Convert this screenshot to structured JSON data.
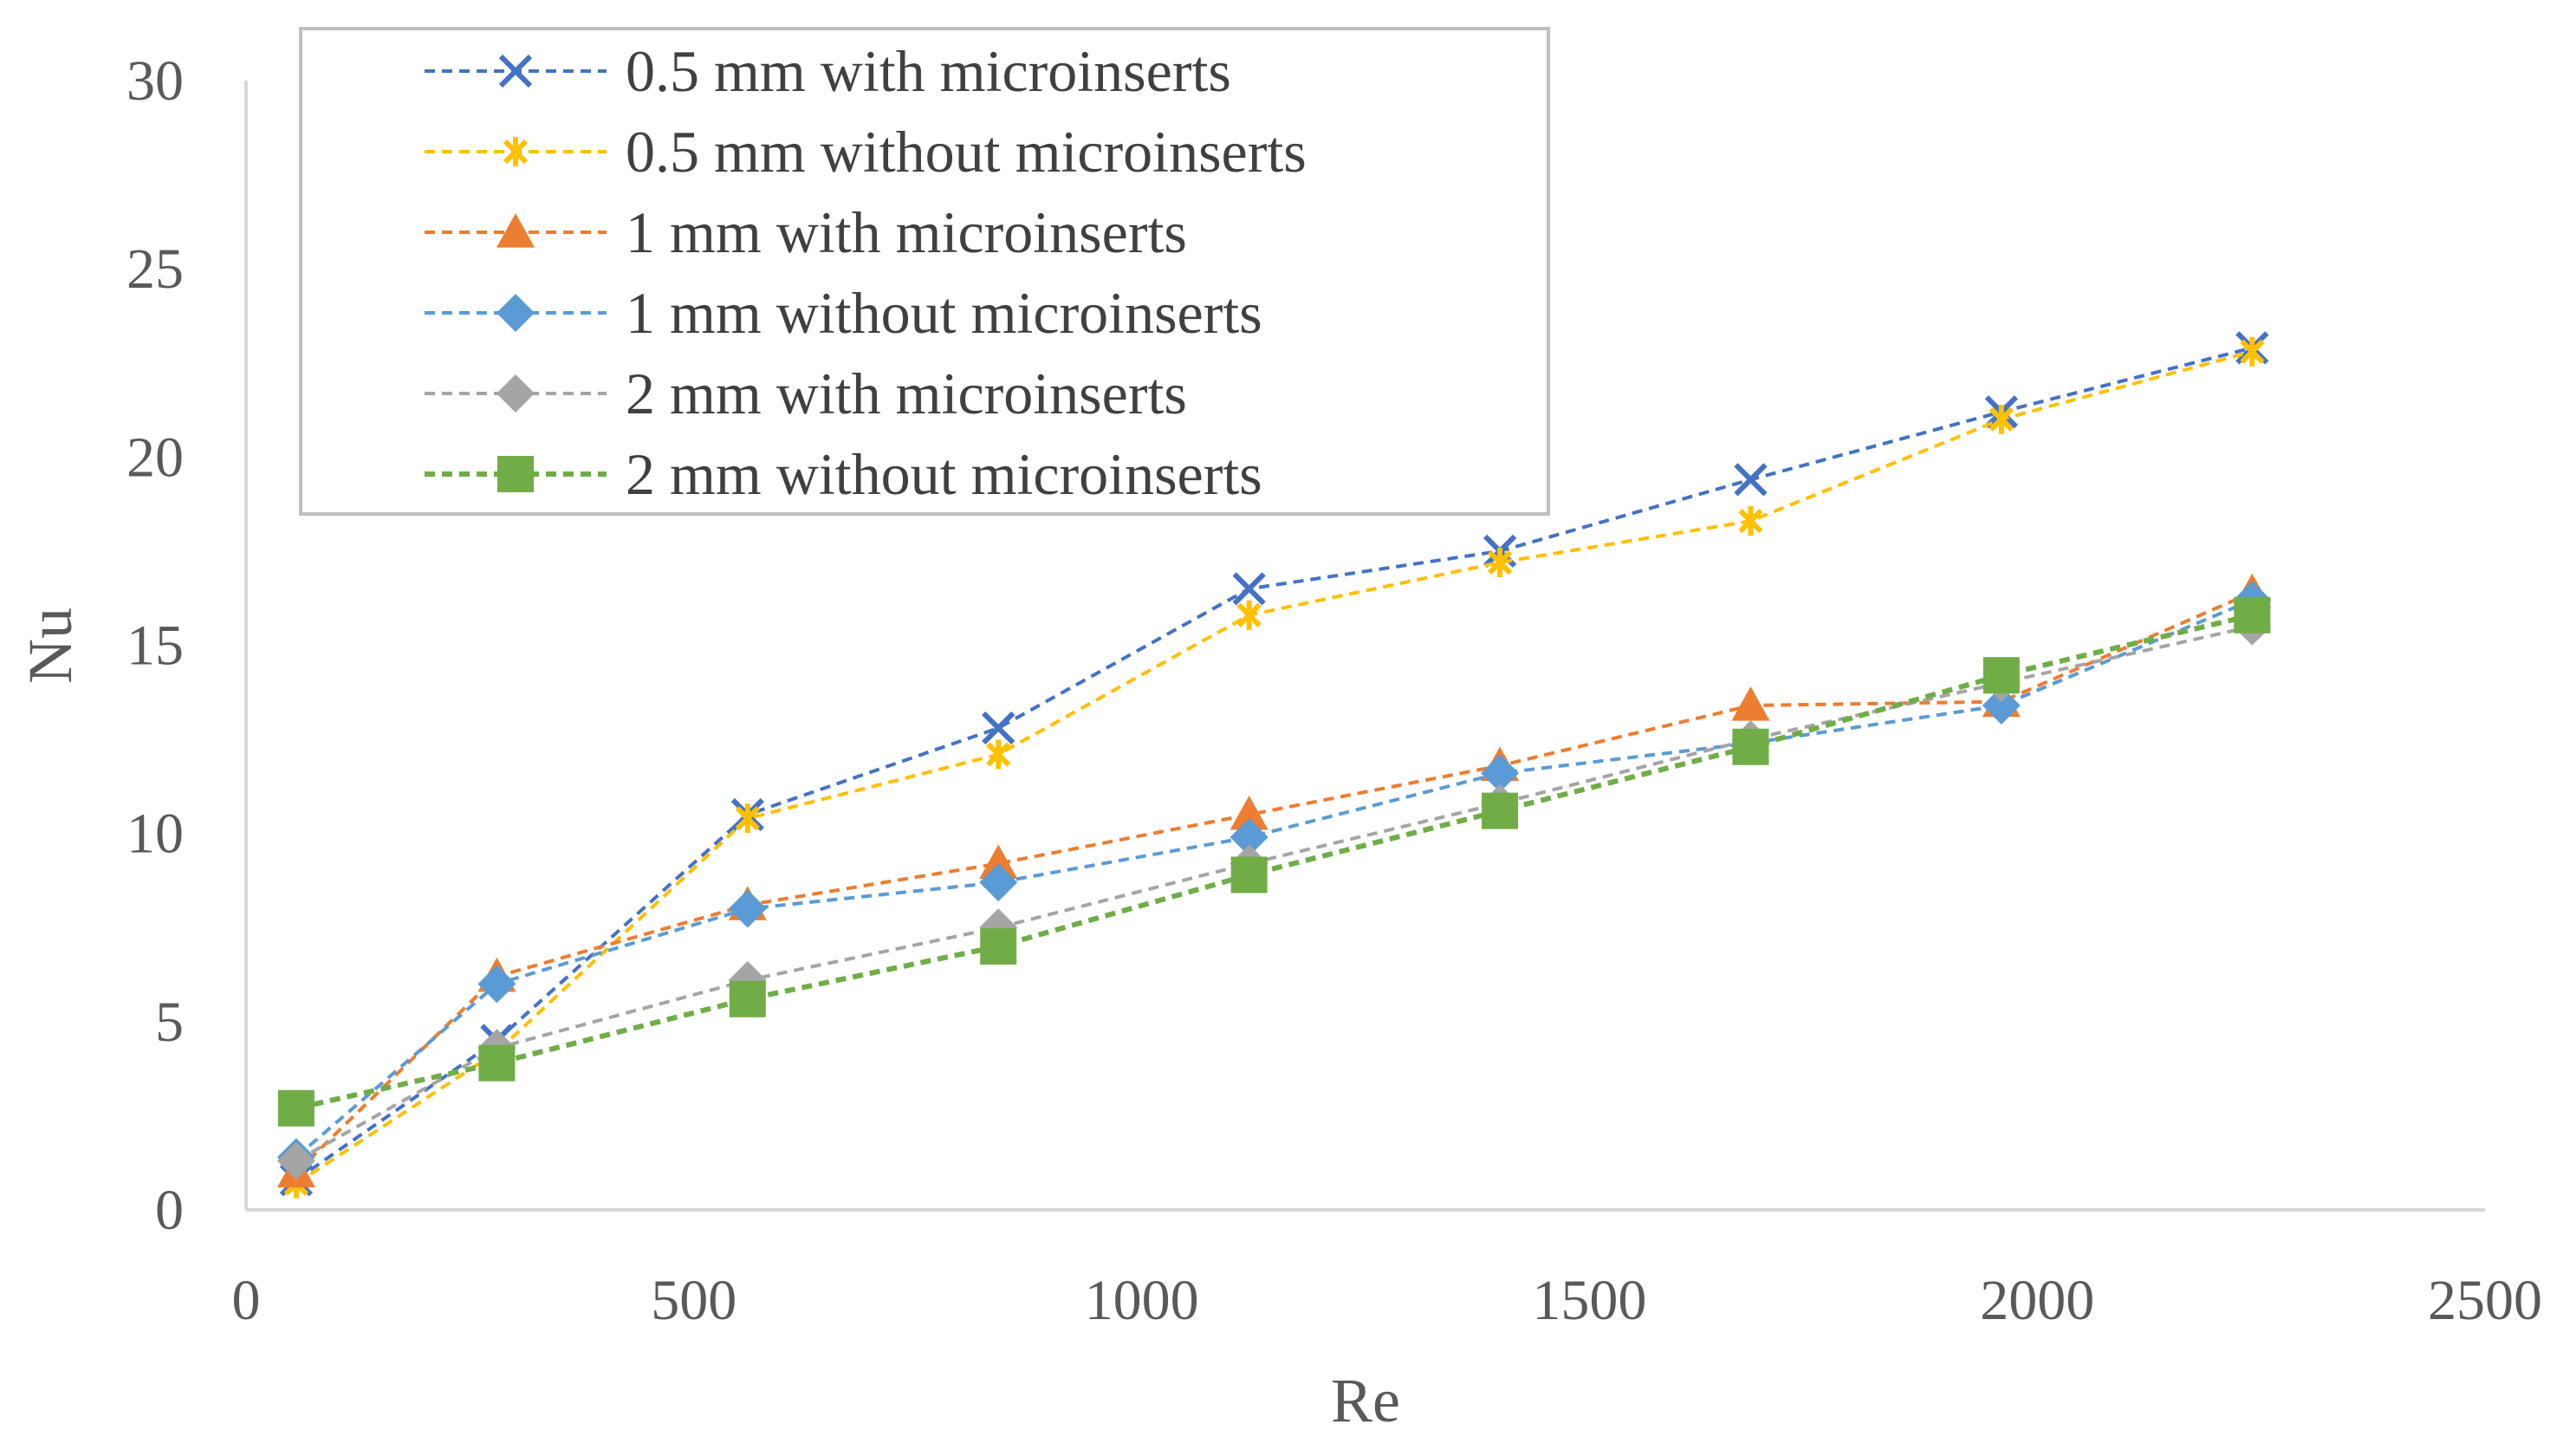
{
  "chart_data": {
    "type": "line",
    "title": "",
    "xlabel": "Re",
    "ylabel": "Nu",
    "xlim": [
      0,
      2500
    ],
    "ylim": [
      0,
      30
    ],
    "xticks": [
      0,
      500,
      1000,
      1500,
      2000,
      2500
    ],
    "yticks": [
      0,
      5,
      10,
      15,
      20,
      25,
      30
    ],
    "xtick_labels": [
      "0",
      "500",
      "1000",
      "1500",
      "2000",
      "2500"
    ],
    "ytick_labels": [
      "0",
      "5",
      "10",
      "15",
      "20",
      "25",
      "30"
    ],
    "grid": false,
    "legend_position": "top-left",
    "x": [
      56,
      280,
      560,
      840,
      1120,
      1400,
      1680,
      1960,
      2240
    ],
    "series": [
      {
        "name": "0.5 mm with microinserts",
        "color": "#4472C4",
        "marker": "x",
        "values": [
          0.8,
          4.5,
          10.5,
          12.8,
          16.5,
          17.5,
          19.4,
          21.2,
          22.9
        ]
      },
      {
        "name": "0.5 mm without microinserts",
        "color": "#FFC000",
        "marker": "asterisk",
        "values": [
          0.7,
          4.2,
          10.4,
          12.1,
          15.8,
          17.2,
          18.3,
          21.0,
          22.8
        ]
      },
      {
        "name": "1 mm with microinserts",
        "color": "#ED7D31",
        "marker": "triangle",
        "values": [
          1.0,
          6.2,
          8.1,
          9.2,
          10.5,
          11.8,
          13.4,
          13.5,
          16.4
        ]
      },
      {
        "name": "1 mm without microinserts",
        "color": "#5B9BD5",
        "marker": "diamond",
        "values": [
          1.4,
          6.0,
          8.0,
          8.7,
          9.9,
          11.6,
          12.4,
          13.4,
          16.2
        ]
      },
      {
        "name": "2 mm with microinserts",
        "color": "#A5A5A5",
        "marker": "diamond",
        "values": [
          1.3,
          4.3,
          6.1,
          7.5,
          9.2,
          10.8,
          12.5,
          14.0,
          15.5
        ]
      },
      {
        "name": "2 mm without microinserts",
        "color": "#70AD47",
        "marker": "square",
        "values": [
          2.7,
          3.9,
          5.6,
          7.0,
          8.9,
          10.6,
          12.3,
          14.2,
          15.8
        ]
      }
    ]
  }
}
